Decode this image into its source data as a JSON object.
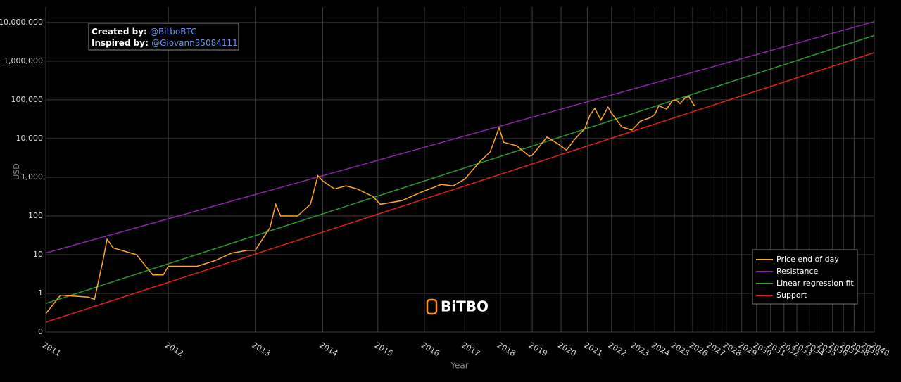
{
  "chart_data": {
    "type": "line",
    "x_label": "Year",
    "y_label": "USD",
    "y_log": true,
    "x_log": true,
    "grid": true,
    "legend": "bottom-right",
    "annotation": {
      "created_label": "Created by:",
      "created_value": "@BitboBTC",
      "inspired_label": "Inspired by:",
      "inspired_value": "@Giovann35084111"
    },
    "logo": "BiTBO",
    "xlim": [
      2011,
      2040
    ],
    "xticks": [
      2011,
      2012,
      2013,
      2014,
      2015,
      2016,
      2017,
      2018,
      2019,
      2020,
      2021,
      2022,
      2023,
      2024,
      2025,
      2026,
      2027,
      2028,
      2029,
      2030,
      2031,
      2032,
      2033,
      2034,
      2035,
      2036,
      2037,
      2038,
      2039,
      2040
    ],
    "ylim": [
      0.1,
      25000000
    ],
    "yticks": [
      {
        "value": 0.1,
        "label": "0"
      },
      1,
      10,
      100,
      {
        "value": 1000,
        "label": "1,000"
      },
      {
        "value": 10000,
        "label": "10,000"
      },
      {
        "value": 100000,
        "label": "100,000"
      },
      {
        "value": 1000000,
        "label": "1,000,000"
      },
      {
        "value": 10000000,
        "label": "10,000,000"
      }
    ],
    "series": [
      {
        "name": "Price end of day",
        "color": "#ffa726",
        "x": [
          2011.0,
          2011.1,
          2011.3,
          2011.35,
          2011.42,
          2011.45,
          2011.5,
          2011.7,
          2011.85,
          2011.95,
          2012.0,
          2012.1,
          2012.3,
          2012.5,
          2012.7,
          2012.9,
          2013.0,
          2013.2,
          2013.28,
          2013.35,
          2013.6,
          2013.8,
          2013.92,
          2014.0,
          2014.2,
          2014.4,
          2014.6,
          2014.9,
          2015.05,
          2015.5,
          2015.9,
          2016.4,
          2016.7,
          2017.0,
          2017.4,
          2017.7,
          2017.96,
          2018.1,
          2018.5,
          2018.9,
          2019.0,
          2019.5,
          2019.9,
          2020.2,
          2020.5,
          2020.9,
          2021.1,
          2021.3,
          2021.55,
          2021.85,
          2022.0,
          2022.45,
          2022.9,
          2023.3,
          2023.8,
          2024.0,
          2024.2,
          2024.6,
          2024.9,
          2025.1,
          2025.3,
          2025.6,
          2025.8,
          2025.95,
          2026.05,
          2026.15
        ],
        "values": [
          0.3,
          0.9,
          0.8,
          0.7,
          8,
          25,
          15,
          10,
          3,
          3,
          5,
          5,
          5,
          7,
          11,
          13,
          13,
          50,
          200,
          100,
          100,
          200,
          1100,
          800,
          500,
          600,
          500,
          320,
          200,
          250,
          400,
          650,
          600,
          900,
          2500,
          4500,
          19000,
          8000,
          6500,
          3500,
          3700,
          11000,
          7200,
          5000,
          9500,
          18000,
          40000,
          60000,
          30000,
          65000,
          45000,
          20000,
          16500,
          28000,
          35000,
          42000,
          70000,
          58000,
          95000,
          100000,
          80000,
          115000,
          120000,
          90000,
          75000,
          68000
        ]
      },
      {
        "name": "Resistance",
        "color": "#8e24aa",
        "x": [
          2011,
          2040
        ],
        "values": [
          11,
          10500000
        ]
      },
      {
        "name": "Linear regression fit",
        "color": "#2e9a2e",
        "x": [
          2011,
          2040
        ],
        "values": [
          0.55,
          4600000
        ]
      },
      {
        "name": "Support",
        "color": "#e02020",
        "x": [
          2011,
          2040
        ],
        "values": [
          0.18,
          1650000
        ]
      }
    ]
  }
}
